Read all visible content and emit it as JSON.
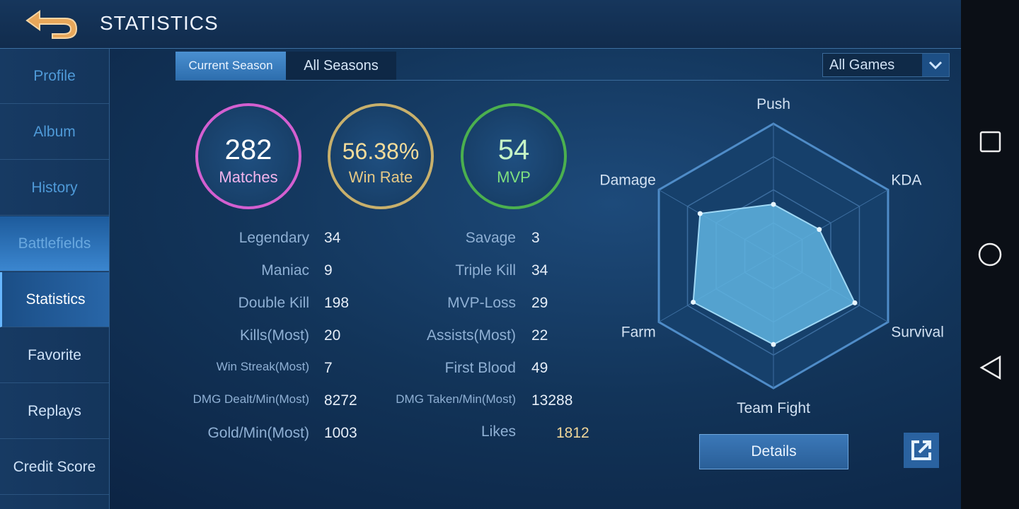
{
  "header": {
    "title": "STATISTICS"
  },
  "sidebar": {
    "items": [
      "Profile",
      "Album",
      "History",
      "Battlefields",
      "Statistics",
      "Favorite",
      "Replays",
      "Credit Score"
    ]
  },
  "tabs": [
    "Current Season",
    "All Seasons"
  ],
  "filter": "All Games",
  "summary": [
    {
      "value": "282",
      "label": "Matches"
    },
    {
      "value": "56.38%",
      "label": "Win Rate"
    },
    {
      "value": "54",
      "label": "MVP"
    }
  ],
  "stats": {
    "left": [
      {
        "label": "Legendary",
        "value": 34
      },
      {
        "label": "Maniac",
        "value": 9
      },
      {
        "label": "Double Kill",
        "value": 198
      },
      {
        "label": "Kills(Most)",
        "value": 20
      },
      {
        "label": "Win Streak(Most)",
        "value": 7
      },
      {
        "label": "DMG Dealt/Min(Most)",
        "value": 8272
      },
      {
        "label": "Gold/Min(Most)",
        "value": 1003
      }
    ],
    "right": [
      {
        "label": "Savage",
        "value": 3
      },
      {
        "label": "Triple Kill",
        "value": 34
      },
      {
        "label": "MVP-Loss",
        "value": 29
      },
      {
        "label": "Assists(Most)",
        "value": 22
      },
      {
        "label": "First Blood",
        "value": 49
      },
      {
        "label": "DMG Taken/Min(Most)",
        "value": 13288
      }
    ],
    "likes": {
      "label": "Likes",
      "value": 1812
    }
  },
  "radar": {
    "axes": [
      "Push",
      "KDA",
      "Survival",
      "Team Fight",
      "Farm",
      "Damage"
    ],
    "values": [
      39,
      40,
      71,
      67,
      70,
      64
    ],
    "rlim": [
      0,
      100
    ],
    "color": "#5fb4e0"
  },
  "button": "Details"
}
